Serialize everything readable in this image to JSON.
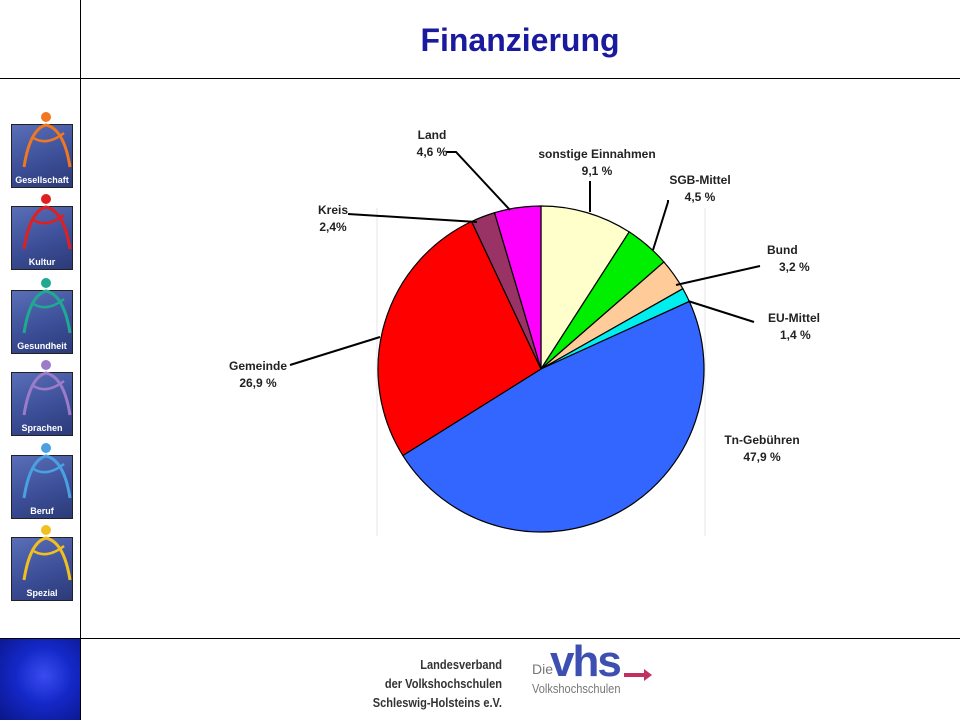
{
  "title": "Finanzierung",
  "sidebar": {
    "items": [
      {
        "label": "Gesellschaft",
        "icon": "gesellschaft-icon",
        "color": "#f07820"
      },
      {
        "label": "Kultur",
        "icon": "kultur-icon",
        "color": "#e02020"
      },
      {
        "label": "Gesundheit",
        "icon": "gesundheit-icon",
        "color": "#20a890"
      },
      {
        "label": "Sprachen",
        "icon": "sprachen-icon",
        "color": "#9c7cc8"
      },
      {
        "label": "Beruf",
        "icon": "beruf-icon",
        "color": "#4aa0e0"
      },
      {
        "label": "Spezial",
        "icon": "spezial-icon",
        "color": "#f0c020"
      }
    ]
  },
  "footer": {
    "org_line1": "Landesverband",
    "org_line2": "der Volkshochschulen",
    "org_line3": "Schleswig-Holsteins e.V.",
    "logo_die": "Die",
    "logo_vhs": "vhs",
    "logo_sub": "Volkshochschulen"
  },
  "chart_data": {
    "type": "pie",
    "title": "Finanzierung",
    "slices": [
      {
        "name": "sonstige Einnahmen",
        "value": 9.1,
        "label": "9,1 %",
        "color": "#ffffcc"
      },
      {
        "name": "SGB-Mittel",
        "value": 4.5,
        "label": "4,5 %",
        "color": "#00ee00"
      },
      {
        "name": "Bund",
        "value": 3.2,
        "label": "3,2 %",
        "color": "#ffcc99"
      },
      {
        "name": "EU-Mittel",
        "value": 1.4,
        "label": "1,4 %",
        "color": "#00eeee"
      },
      {
        "name": "Tn-Gebühren",
        "value": 47.9,
        "label": "47,9 %",
        "color": "#3366ff"
      },
      {
        "name": "Gemeinde",
        "value": 26.9,
        "label": "26,9 %",
        "color": "#ff0000"
      },
      {
        "name": "Kreis",
        "value": 2.4,
        "label": "2,4%",
        "color": "#993366"
      },
      {
        "name": "Land",
        "value": 4.6,
        "label": "4,6 %",
        "color": "#ff00ff"
      }
    ],
    "start_angle_deg": 0,
    "direction": "clockwise"
  }
}
